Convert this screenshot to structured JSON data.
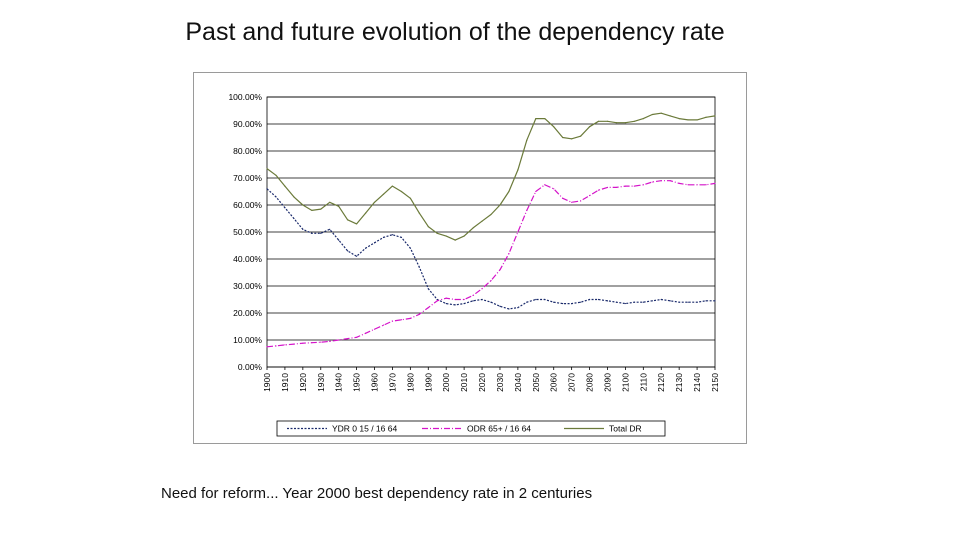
{
  "slide": {
    "title": "Past and future evolution of the dependency rate",
    "caption": "Need for reform... Year 2000 best dependency rate in 2 centuries"
  },
  "chart_data": {
    "type": "line",
    "title": "",
    "xlabel": "",
    "ylabel": "",
    "ylim": [
      0,
      100
    ],
    "grid": true,
    "legend_position": "bottom",
    "x": [
      1900,
      1905,
      1910,
      1915,
      1920,
      1925,
      1930,
      1935,
      1940,
      1945,
      1950,
      1955,
      1960,
      1965,
      1970,
      1975,
      1980,
      1985,
      1990,
      1995,
      2000,
      2005,
      2010,
      2015,
      2020,
      2025,
      2030,
      2035,
      2040,
      2045,
      2050,
      2055,
      2060,
      2065,
      2070,
      2075,
      2080,
      2085,
      2090,
      2095,
      2100,
      2105,
      2110,
      2115,
      2120,
      2125,
      2130,
      2135,
      2140,
      2145,
      2150
    ],
    "x_ticks": [
      "1900",
      "1910",
      "1920",
      "1930",
      "1940",
      "1950",
      "1960",
      "1970",
      "1980",
      "1990",
      "2000",
      "2010",
      "2020",
      "2030",
      "2040",
      "2050",
      "2060",
      "2070",
      "2080",
      "2090",
      "2100",
      "2110",
      "2120",
      "2130",
      "2140",
      "2150"
    ],
    "y_ticks": [
      "0.00%",
      "10.00%",
      "20.00%",
      "30.00%",
      "40.00%",
      "50.00%",
      "60.00%",
      "70.00%",
      "80.00%",
      "90.00%",
      "100.00%"
    ],
    "series": [
      {
        "name": "YDR 0 15 / 16 64",
        "color": "#1a2a6b",
        "dash": "2,1.5",
        "values": [
          66,
          63,
          59,
          55,
          51,
          49.5,
          49.5,
          51,
          47,
          43,
          41,
          44,
          46,
          48,
          49,
          48,
          44,
          37,
          29,
          25,
          23.5,
          23,
          23.5,
          24.5,
          25,
          24,
          22.5,
          21.5,
          22,
          24,
          25,
          25,
          24,
          23.5,
          23.5,
          24,
          25,
          25,
          24.5,
          24,
          23.5,
          24,
          24,
          24.5,
          25,
          24.5,
          24,
          24,
          24,
          24.5,
          24.5
        ]
      },
      {
        "name": "ODR 65+ / 16 64",
        "color": "#d413c9",
        "dash": "6,2,1,2",
        "values": [
          7.5,
          7.8,
          8.2,
          8.5,
          8.8,
          9,
          9.2,
          9.5,
          10,
          10.5,
          11,
          12.5,
          14,
          15.5,
          17,
          17.5,
          18,
          19.5,
          22,
          24.5,
          25.5,
          25,
          25,
          26.5,
          29,
          32,
          36,
          42,
          50,
          58,
          65,
          67.5,
          66,
          62.5,
          61,
          61.5,
          63.5,
          65.5,
          66.5,
          66.5,
          67,
          67,
          67.5,
          68.5,
          69,
          69,
          68,
          67.5,
          67.5,
          67.5,
          68
        ]
      },
      {
        "name": "Total DR",
        "color": "#6b7a3a",
        "dash": "",
        "values": [
          73.5,
          71,
          67,
          63,
          60,
          58,
          58.5,
          61,
          59.5,
          54.5,
          53,
          57,
          61,
          64,
          67,
          65,
          62.5,
          57,
          52,
          49.5,
          48.5,
          47,
          48.5,
          51.5,
          54,
          56.5,
          60,
          65,
          73,
          84,
          92,
          92,
          89,
          85,
          84.5,
          85.5,
          89,
          91,
          91,
          90.5,
          90.5,
          91,
          92,
          93.5,
          94,
          93,
          92,
          91.5,
          91.5,
          92.5,
          93
        ]
      }
    ]
  }
}
